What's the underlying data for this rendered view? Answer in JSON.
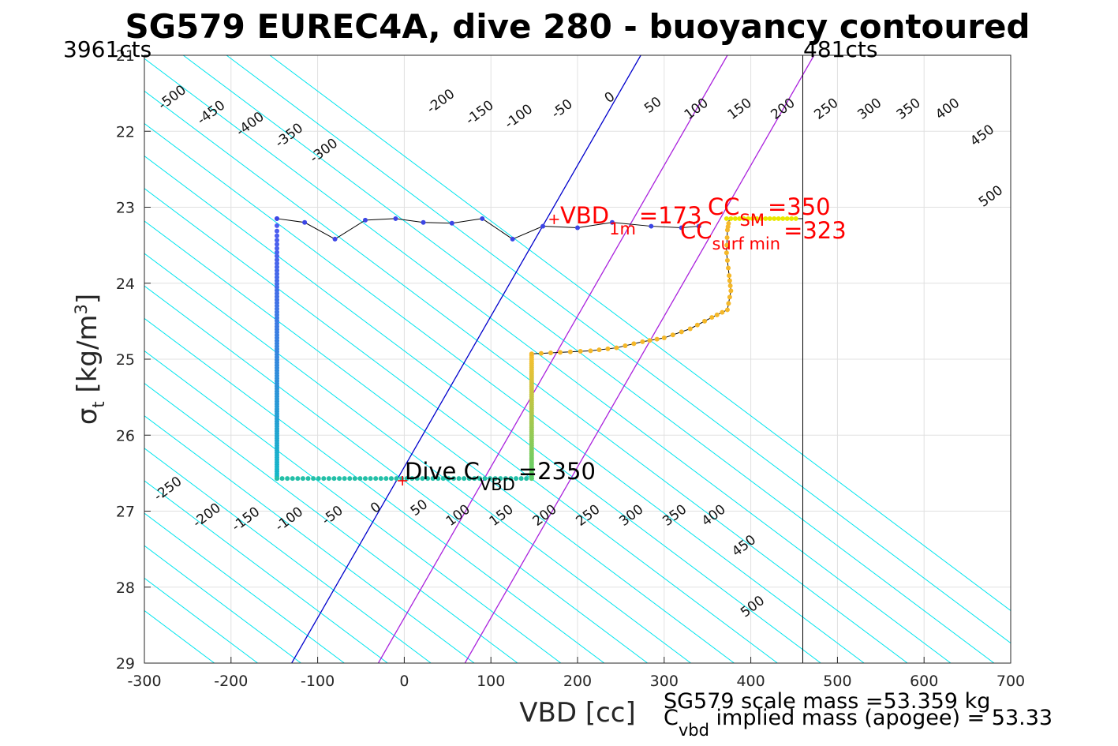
{
  "chart_data": {
    "type": "scatter",
    "title": "SG579 EUREC4A, dive 280 - buoyancy contoured",
    "xlabel": "VBD [cc]",
    "ylabel": {
      "symbol": "σ",
      "subscript": "t",
      "units": " [kg/m",
      "sup": "3",
      "close": "]"
    },
    "xlim": [
      -300,
      700
    ],
    "ylim": [
      21,
      29
    ],
    "y_reversed": true,
    "grid": true,
    "x_ticks": [
      "-300",
      "-200",
      "-100",
      "0",
      "100",
      "200",
      "300",
      "400",
      "500",
      "600",
      "700"
    ],
    "y_ticks": [
      "21",
      "22",
      "23",
      "24",
      "25",
      "26",
      "27",
      "28",
      "29"
    ],
    "corner_labels": {
      "left": "3961cts",
      "right": "481cts"
    },
    "vertical_line_x": 460,
    "contours": {
      "levels": [
        -500,
        -450,
        -400,
        -350,
        -300,
        -250,
        -200,
        -150,
        -100,
        -50,
        0,
        50,
        100,
        150,
        200,
        250,
        300,
        350,
        400,
        450,
        500
      ],
      "slope_cc_per_sigma": 117,
      "x_at_sigma_26_6": 0,
      "top_labels": [
        {
          "value": "-500",
          "x": -265,
          "y": 21.6
        },
        {
          "value": "-450",
          "x": -220,
          "y": 21.8
        },
        {
          "value": "-400",
          "x": -175,
          "y": 21.95
        },
        {
          "value": "-350",
          "x": -130,
          "y": 22.1
        },
        {
          "value": "-300",
          "x": -90,
          "y": 22.3
        },
        {
          "value": "-200",
          "x": 45,
          "y": 21.65
        },
        {
          "value": "-150",
          "x": 90,
          "y": 21.8
        },
        {
          "value": "-100",
          "x": 135,
          "y": 21.85
        },
        {
          "value": "-50",
          "x": 185,
          "y": 21.75
        },
        {
          "value": "0",
          "x": 240,
          "y": 21.6
        },
        {
          "value": "50",
          "x": 290,
          "y": 21.7
        },
        {
          "value": "100",
          "x": 340,
          "y": 21.75
        },
        {
          "value": "150",
          "x": 390,
          "y": 21.75
        },
        {
          "value": "200",
          "x": 440,
          "y": 21.75
        },
        {
          "value": "250",
          "x": 490,
          "y": 21.75
        },
        {
          "value": "300",
          "x": 540,
          "y": 21.75
        },
        {
          "value": "350",
          "x": 585,
          "y": 21.75
        },
        {
          "value": "400",
          "x": 630,
          "y": 21.75
        },
        {
          "value": "450",
          "x": 670,
          "y": 22.1
        },
        {
          "value": "500",
          "x": 680,
          "y": 22.9
        }
      ],
      "bottom_labels": [
        {
          "value": "-250",
          "x": -270,
          "y": 26.75
        },
        {
          "value": "-200",
          "x": -225,
          "y": 27.1
        },
        {
          "value": "-150",
          "x": -180,
          "y": 27.15
        },
        {
          "value": "-100",
          "x": -130,
          "y": 27.15
        },
        {
          "value": "-50",
          "x": -80,
          "y": 27.1
        },
        {
          "value": "0",
          "x": -30,
          "y": 27
        },
        {
          "value": "50",
          "x": 20,
          "y": 27
        },
        {
          "value": "100",
          "x": 65,
          "y": 27.1
        },
        {
          "value": "150",
          "x": 115,
          "y": 27.1
        },
        {
          "value": "200",
          "x": 165,
          "y": 27.1
        },
        {
          "value": "250",
          "x": 215,
          "y": 27.1
        },
        {
          "value": "300",
          "x": 265,
          "y": 27.1
        },
        {
          "value": "350",
          "x": 315,
          "y": 27.1
        },
        {
          "value": "400",
          "x": 360,
          "y": 27.1
        },
        {
          "value": "450",
          "x": 395,
          "y": 27.5
        },
        {
          "value": "500",
          "x": 405,
          "y": 28.3
        }
      ]
    },
    "special_lines": [
      {
        "name": "neutral-0",
        "color": "#0000cc",
        "x_top": 273,
        "x_bottom": -130
      },
      {
        "name": "vbd-1m",
        "color": "#aa22dd",
        "x_top": 373,
        "x_bottom": -30
      },
      {
        "name": "vbd-surf-min",
        "color": "#aa22dd",
        "x_top": 473,
        "x_bottom": 70
      }
    ],
    "profile": {
      "top_track": [
        [
          -147,
          23.15
        ],
        [
          -115,
          23.2
        ],
        [
          -80,
          23.42
        ],
        [
          -45,
          23.17
        ],
        [
          -10,
          23.15
        ],
        [
          22,
          23.2
        ],
        [
          55,
          23.21
        ],
        [
          90,
          23.15
        ],
        [
          125,
          23.42
        ],
        [
          160,
          23.25
        ],
        [
          200,
          23.27
        ],
        [
          240,
          23.2
        ],
        [
          285,
          23.25
        ],
        [
          320,
          23.27
        ],
        [
          340,
          23.25
        ]
      ],
      "down_x": -147,
      "down_y_range": [
        23.15,
        26.57
      ],
      "bottom_track_y": 26.57,
      "bottom_track_x": [
        -147,
        147
      ],
      "up_x": 147,
      "up_y_range": [
        24.95,
        26.57
      ],
      "ramp": [
        [
          147,
          24.93
        ],
        [
          180,
          24.91
        ],
        [
          215,
          24.89
        ],
        [
          245,
          24.85
        ],
        [
          275,
          24.77
        ],
        [
          300,
          24.72
        ],
        [
          330,
          24.6
        ],
        [
          355,
          24.45
        ],
        [
          373,
          24.35
        ],
        [
          377,
          24.1
        ],
        [
          375,
          23.9
        ],
        [
          372,
          23.6
        ],
        [
          373,
          23.3
        ],
        [
          375,
          23.17
        ]
      ],
      "surface": [
        [
          375,
          23.15
        ],
        [
          390,
          23.15
        ],
        [
          405,
          23.15
        ],
        [
          420,
          23.14
        ],
        [
          435,
          23.14
        ],
        [
          450,
          23.15
        ]
      ]
    },
    "markers": [
      {
        "name": "dive-c-vbd",
        "x": -2,
        "y": 26.6,
        "color": "#ff0000"
      },
      {
        "name": "vbd-1m",
        "x": 173,
        "y": 23.16,
        "color": "#ff0000"
      }
    ],
    "annotations": {
      "dive_c": {
        "main": "Dive C",
        "sub": "VBD",
        "value": "=2350"
      },
      "vbd_1m": {
        "main": "VBD",
        "sub": "1m",
        "value": "=173"
      },
      "cc_sm": {
        "main": "CC",
        "sub": "SM",
        "value": "=350"
      },
      "cc_surf": {
        "main": "CC",
        "sub": "surf min",
        "value": "=323"
      },
      "scale_mass": "SG579 scale mass =53.359 kg",
      "implied_mass": {
        "main": "C",
        "sub": "vbd",
        "value": " implied mass (apogee) = 53.33"
      }
    },
    "colors": {
      "contour": "#00e5ee",
      "grid": "#e0e0e0",
      "surface_track": "#e8e800",
      "ramp_track": "#f5b829",
      "down_start": "#4e5cf0",
      "down_end": "#14b8c8",
      "bottom_track": "#24c0a8",
      "up_bottom": "#5ccf6a",
      "up_top": "#f5c030"
    }
  }
}
